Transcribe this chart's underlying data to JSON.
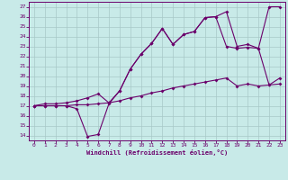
{
  "xlabel": "Windchill (Refroidissement éolien,°C)",
  "xlim_min": -0.5,
  "xlim_max": 23.5,
  "ylim_min": 13.5,
  "ylim_max": 27.5,
  "xticks": [
    0,
    1,
    2,
    3,
    4,
    5,
    6,
    7,
    8,
    9,
    10,
    11,
    12,
    13,
    14,
    15,
    16,
    17,
    18,
    19,
    20,
    21,
    22,
    23
  ],
  "yticks": [
    14,
    15,
    16,
    17,
    18,
    19,
    20,
    21,
    22,
    23,
    24,
    25,
    26,
    27
  ],
  "bg_color": "#c8eae8",
  "line_color": "#6b006b",
  "grid_color": "#a8c8c8",
  "line1": {
    "x": [
      0,
      1,
      2,
      3,
      4,
      5,
      6,
      7,
      8,
      9,
      10,
      11,
      12,
      13,
      14,
      15,
      16,
      17,
      18,
      19,
      20,
      21,
      22,
      23
    ],
    "y": [
      17.0,
      17.0,
      17.0,
      17.0,
      17.1,
      17.1,
      17.2,
      17.3,
      17.5,
      17.8,
      18.0,
      18.3,
      18.5,
      18.8,
      19.0,
      19.2,
      19.4,
      19.6,
      19.8,
      19.0,
      19.2,
      19.0,
      19.1,
      19.2
    ]
  },
  "line2": {
    "x": [
      0,
      1,
      2,
      3,
      4,
      5,
      6,
      7,
      8,
      9,
      10,
      11,
      12,
      13,
      14,
      15,
      16,
      17,
      18,
      19,
      20,
      21,
      22,
      23
    ],
    "y": [
      17.0,
      17.0,
      17.0,
      17.0,
      16.7,
      13.9,
      14.1,
      17.2,
      18.5,
      20.7,
      22.2,
      23.3,
      24.8,
      23.2,
      24.2,
      24.5,
      25.9,
      26.0,
      23.0,
      22.8,
      22.9,
      22.8,
      19.1,
      19.8
    ]
  },
  "line3": {
    "x": [
      0,
      1,
      2,
      3,
      4,
      5,
      6,
      7,
      8,
      9,
      10,
      11,
      12,
      13,
      14,
      15,
      16,
      17,
      18,
      19,
      20,
      21,
      22,
      23
    ],
    "y": [
      17.0,
      17.2,
      17.2,
      17.3,
      17.5,
      17.8,
      18.2,
      17.3,
      18.5,
      20.7,
      22.2,
      23.3,
      24.8,
      23.2,
      24.2,
      24.5,
      25.9,
      26.0,
      26.5,
      23.0,
      23.2,
      22.8,
      27.0,
      27.0
    ]
  }
}
